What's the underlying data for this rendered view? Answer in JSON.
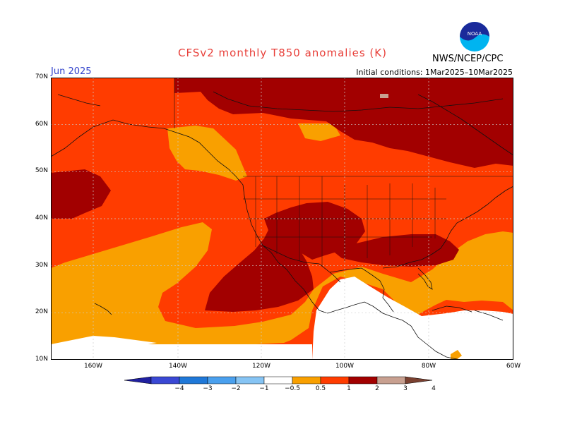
{
  "title": "CFSv2 monthly T850 anomalies (K)",
  "month": "Jun 2025",
  "init": "Initial conditions: 1Mar2025–10Mar2025",
  "agency": "NWS/NCEP/CPC",
  "logo_text": "NOAA",
  "lat_labels": [
    "70N",
    "60N",
    "50N",
    "40N",
    "30N",
    "20N",
    "10N"
  ],
  "lon_labels": [
    "160W",
    "140W",
    "120W",
    "100W",
    "80W",
    "60W"
  ],
  "legend": {
    "labels": [
      "−4",
      "−3",
      "−2",
      "−1",
      "−0.5",
      "0.5",
      "1",
      "2",
      "3",
      "4"
    ],
    "colors": [
      "#2020a0",
      "#3a48d4",
      "#1f78d8",
      "#4aa0ee",
      "#86c4f4",
      "#ffffff",
      "#f9a000",
      "#ff3c00",
      "#a20000",
      "#c8a090",
      "#7a4030"
    ]
  },
  "colors": {
    "c05_1": "#f9a000",
    "c1_2": "#ff3c00",
    "c2_3": "#a20000",
    "c3_4": "#c8a090",
    "grid": "#cccccc",
    "title_red": "#e8403a",
    "month_blue": "#3344cc"
  }
}
